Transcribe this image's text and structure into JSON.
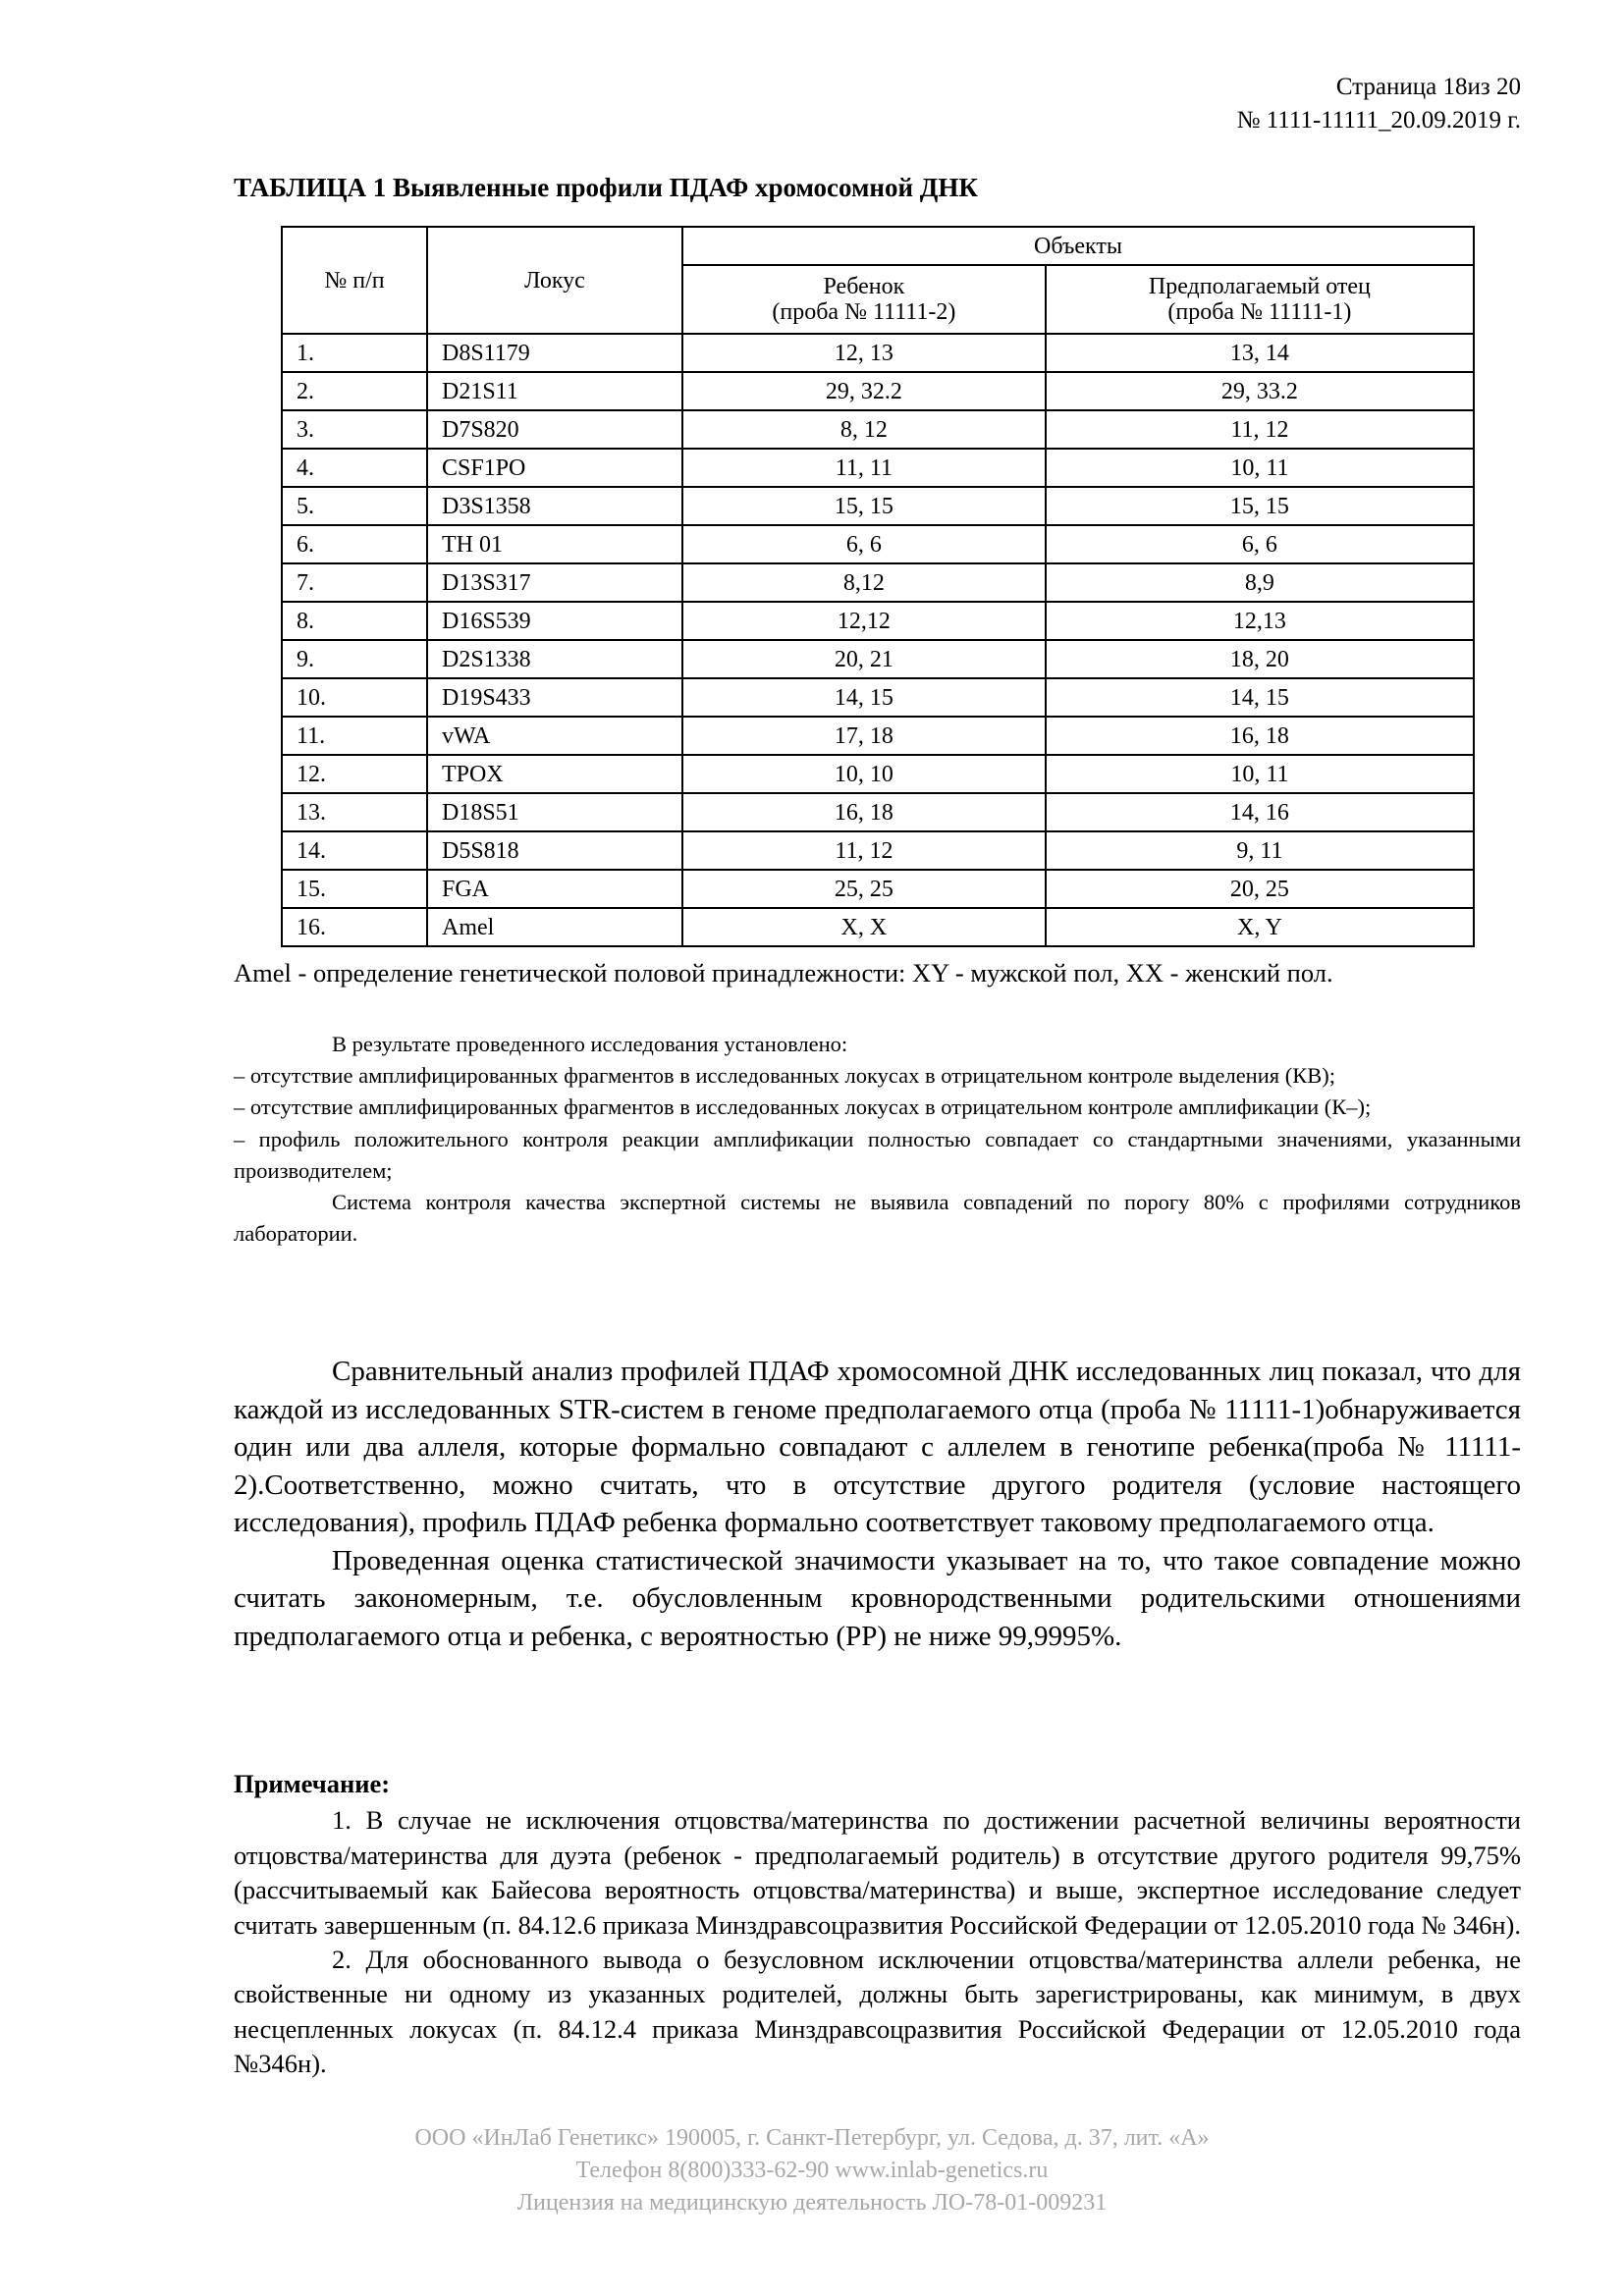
{
  "header": {
    "page": "Страница 18из 20",
    "doc_no": "№ 1111-11111_20.09.2019 г."
  },
  "title": "ТАБЛИЦА 1 Выявленные профили ПДАФ хромосомной ДНК",
  "table": {
    "col_num": "№  п/п",
    "col_locus": "Локус",
    "col_objects": "Объекты",
    "col_child": "Ребенок",
    "col_child_sample": "(проба № 11111-2)",
    "col_father": "Предполагаемый отец",
    "col_father_sample": "(проба № 11111-1)",
    "rows": [
      [
        "1.",
        "D8S1179",
        "12, 13",
        "13, 14"
      ],
      [
        "2.",
        "D21S11",
        "29, 32.2",
        "29, 33.2"
      ],
      [
        "3.",
        "D7S820",
        "8, 12",
        "11, 12"
      ],
      [
        "4.",
        "CSF1PO",
        "11, 11",
        "10, 11"
      ],
      [
        "5.",
        "D3S1358",
        "15, 15",
        "15, 15"
      ],
      [
        "6.",
        "TH 01",
        "6, 6",
        "6, 6"
      ],
      [
        "7.",
        "D13S317",
        "8,12",
        "8,9"
      ],
      [
        "8.",
        "D16S539",
        "12,12",
        "12,13"
      ],
      [
        "9.",
        "D2S1338",
        "20, 21",
        "18, 20"
      ],
      [
        "10.",
        "D19S433",
        "14, 15",
        "14, 15"
      ],
      [
        "11.",
        "vWA",
        "17, 18",
        "16, 18"
      ],
      [
        "12.",
        "TPOX",
        "10, 10",
        "10, 11"
      ],
      [
        "13.",
        "D18S51",
        "16, 18",
        "14, 16"
      ],
      [
        "14.",
        "D5S818",
        "11, 12",
        "9, 11"
      ],
      [
        "15.",
        "FGA",
        "25, 25",
        "20, 25"
      ],
      [
        "16.",
        "Amel",
        "X, X",
        "X, Y"
      ]
    ]
  },
  "footnote": "Amel - определение генетической половой принадлежности: XY - мужской пол, XX - женский пол.",
  "results": {
    "intro": "В результате проведенного исследования установлено:",
    "items": [
      "–  отсутствие амплифицированных фрагментов в исследованных локусах в отрицательном контроле выделения (КВ);",
      "–  отсутствие амплифицированных фрагментов в исследованных локусах в отрицательном контроле амплификации (К–);",
      "–  профиль положительного контроля реакции амплификации полностью совпадает со стандартными значениями, указанными производителем;"
    ],
    "qc": "Система контроля качества экспертной системы не выявила совпадений по порогу 80% с профилями сотрудников лаборатории."
  },
  "analysis": [
    "Сравнительный анализ профилей ПДАФ хромосомной ДНК исследованных лиц показал, что для каждой из исследованных STR-систем в геноме предполагаемого отца (проба № 11111-1)обнаруживается один или два аллеля, которые формально совпадают с аллелем в генотипе ребенка(проба № 11111-2).Соответственно, можно считать, что в отсутствие другого родителя (условие настоящего исследования), профиль ПДАФ ребенка формально соответствует таковому предполагаемого отца.",
    "Проведенная оценка статистической значимости указывает на то, что такое совпадение можно считать закономерным, т.е. обусловленным кровнородственными родительскими отношениями предполагаемого отца и ребенка, с вероятностью (PP) не ниже 99,9995%."
  ],
  "note": {
    "heading": "Примечание:",
    "items": [
      "1. В случае не исключения отцовства/материнства по достижении расчетной величины вероятности отцовства/материнства для дуэта (ребенок - предполагаемый родитель) в отсутствие другого родителя 99,75% (рассчитываемый как Байесова вероятность отцовства/материнства) и выше, экспертное исследование следует считать завершенным (п. 84.12.6 приказа Минздравсоцразвития Российской Федерации от 12.05.2010 года № 346н).",
      "2. Для обоснованного вывода о безусловном исключении отцовства/материнства аллели ребенка, не свойственные ни одному из указанных родителей, должны быть зарегистрированы, как минимум, в двух несцепленных локусах (п. 84.12.4 приказа Минздравсоцразвития Российской Федерации от 12.05.2010 года №346н)."
    ]
  },
  "footer": {
    "address": "ООО «ИнЛаб Генетикс» 190005, г. Санкт-Петербург, ул. Седова, д. 37, лит. «А»",
    "contacts": "Телефон 8(800)333-62-90 www.inlab-genetics.ru",
    "license": "Лицензия на медицинскую деятельность ЛО-78-01-009231"
  }
}
